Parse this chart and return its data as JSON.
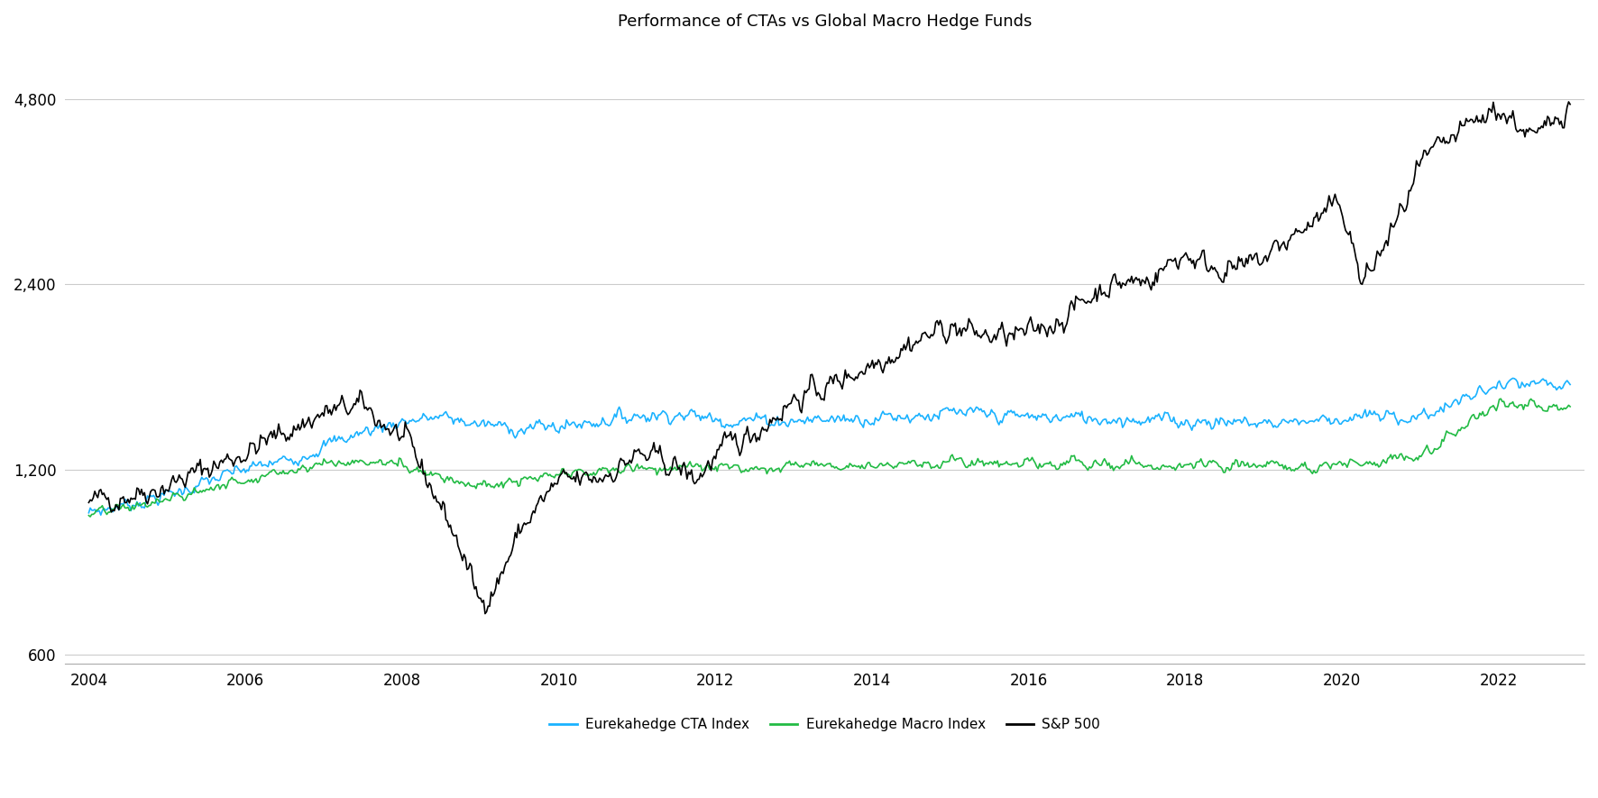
{
  "title": "Performance of CTAs vs Global Macro Hedge Funds",
  "title_fontsize": 13,
  "background_color": "#ffffff",
  "line_colors": {
    "cta": "#1ab2ff",
    "macro": "#22bb44",
    "sp500": "#000000"
  },
  "line_widths": {
    "cta": 1.2,
    "macro": 1.2,
    "sp500": 1.2
  },
  "legend_labels": [
    "Eurekahedge CTA Index",
    "Eurekahedge Macro Index",
    "S&P 500"
  ],
  "yticks": [
    600,
    1200,
    2400,
    4800
  ],
  "ytick_labels": [
    "600",
    "1,200",
    "2,400",
    "4,800"
  ],
  "xticks": [
    2004,
    2006,
    2008,
    2010,
    2012,
    2014,
    2016,
    2018,
    2020,
    2022
  ],
  "ylim_log": [
    580,
    5800
  ],
  "xlim": [
    2003.7,
    2023.1
  ],
  "sp500_anchors": {
    "years": [
      2004,
      2005,
      2006,
      2007,
      2007.5,
      2007.75,
      2008.0,
      2008.25,
      2008.5,
      2008.75,
      2009.0,
      2009.25,
      2009.5,
      2009.75,
      2010,
      2010.5,
      2011,
      2011.5,
      2011.75,
      2012,
      2012.5,
      2013,
      2013.5,
      2014,
      2014.5,
      2015,
      2015.5,
      2016,
      2016.5,
      2017,
      2017.5,
      2018,
      2018.25,
      2018.75,
      2019,
      2019.5,
      2020.0,
      2020.167,
      2020.25,
      2020.5,
      2020.75,
      2021,
      2021.5,
      2022.0,
      2022.5,
      2022.917
    ],
    "values": [
      1060,
      1130,
      1280,
      1480,
      1520,
      1430,
      1350,
      1200,
      1050,
      890,
      725,
      800,
      950,
      1050,
      1140,
      1160,
      1265,
      1215,
      1155,
      1260,
      1380,
      1560,
      1650,
      1790,
      1930,
      2050,
      1970,
      1980,
      2150,
      2400,
      2430,
      2700,
      2590,
      2530,
      2640,
      2950,
      3230,
      2700,
      2380,
      2700,
      3100,
      3700,
      4200,
      4650,
      4100,
      4800
    ]
  },
  "cta_anchors": {
    "years": [
      2004,
      2005,
      2006,
      2006.5,
      2007,
      2007.5,
      2008,
      2008.5,
      2009,
      2009.5,
      2010,
      2011,
      2011.5,
      2012,
      2013,
      2014,
      2015,
      2016,
      2017,
      2018,
      2019,
      2020,
      2021,
      2022,
      2022.917
    ],
    "values": [
      1020,
      1090,
      1200,
      1240,
      1310,
      1380,
      1440,
      1460,
      1420,
      1400,
      1410,
      1470,
      1480,
      1450,
      1440,
      1460,
      1478,
      1460,
      1455,
      1440,
      1430,
      1455,
      1462,
      1640,
      1640
    ]
  },
  "macro_anchors": {
    "years": [
      2004,
      2005,
      2006,
      2006.5,
      2007,
      2007.5,
      2008,
      2008.5,
      2009,
      2009.5,
      2010,
      2011,
      2011.5,
      2012,
      2013,
      2014,
      2015,
      2016,
      2017,
      2018,
      2019,
      2020,
      2021,
      2022,
      2022.917
    ],
    "values": [
      1010,
      1070,
      1160,
      1195,
      1230,
      1235,
      1225,
      1175,
      1125,
      1145,
      1170,
      1210,
      1210,
      1205,
      1218,
      1228,
      1230,
      1222,
      1222,
      1215,
      1210,
      1222,
      1270,
      1530,
      1510
    ]
  }
}
